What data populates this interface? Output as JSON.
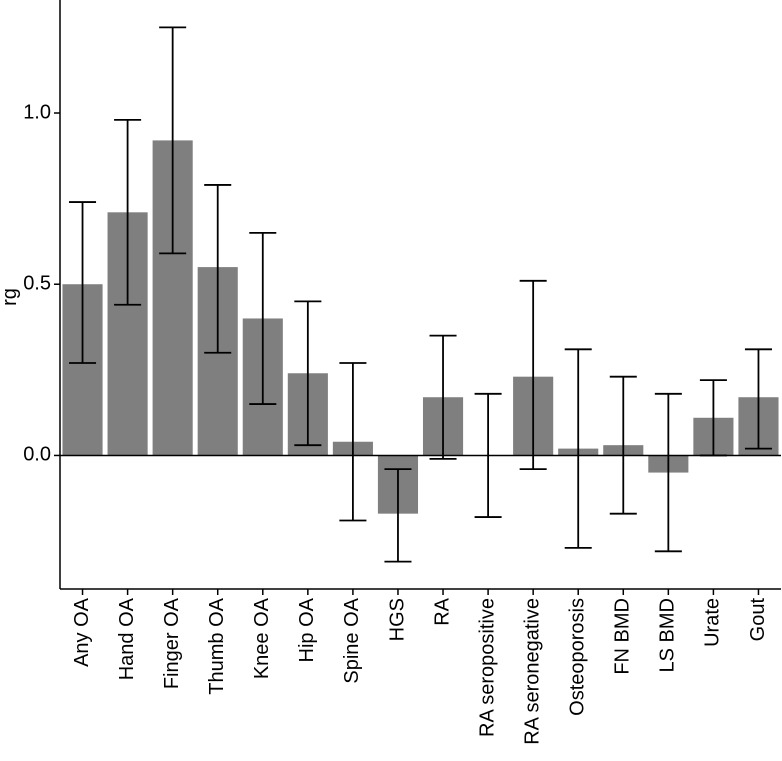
{
  "chart_data": {
    "type": "bar",
    "ylabel": "rg",
    "xlabel": "",
    "ylim": [
      -0.39,
      1.33
    ],
    "yticks": [
      0.0,
      0.5,
      1.0
    ],
    "ytick_labels": [
      "0.0",
      "0.5",
      "1.0"
    ],
    "grid": false,
    "bar_color": "#7f7f7f",
    "categories": [
      "Any OA",
      "Hand OA",
      "Finger OA",
      "Thumb OA",
      "Knee OA",
      "Hip OA",
      "Spine OA",
      "HGS",
      "RA",
      "RA seropositive",
      "RA seronegative",
      "Osteoporosis",
      "FN BMD",
      "LS BMD",
      "Urate",
      "Gout"
    ],
    "values": [
      0.5,
      0.71,
      0.92,
      0.55,
      0.4,
      0.24,
      0.04,
      -0.17,
      0.17,
      0.0,
      0.23,
      0.02,
      0.03,
      -0.05,
      0.11,
      0.17
    ],
    "error_lower": [
      0.27,
      0.44,
      0.59,
      0.3,
      0.15,
      0.03,
      -0.19,
      -0.31,
      -0.01,
      -0.18,
      -0.04,
      -0.27,
      -0.17,
      -0.28,
      0.0,
      0.02
    ],
    "error_upper": [
      0.74,
      0.98,
      1.25,
      0.79,
      0.65,
      0.45,
      0.27,
      -0.04,
      0.35,
      0.18,
      0.51,
      0.31,
      0.23,
      0.18,
      0.22,
      0.31
    ]
  }
}
